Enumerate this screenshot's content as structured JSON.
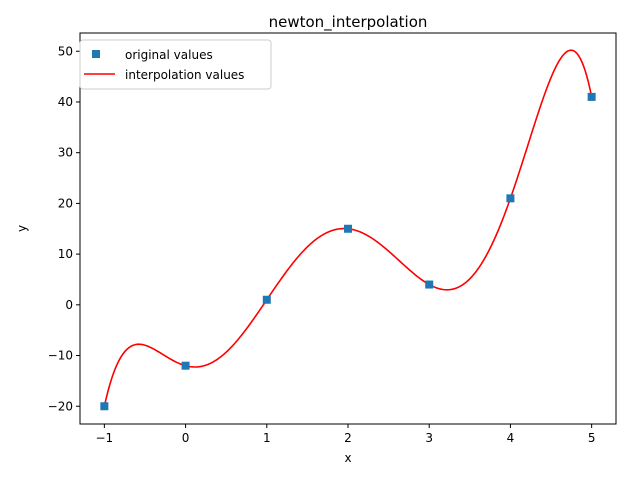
{
  "chart_data": {
    "type": "line",
    "title": "newton_interpolation",
    "xlabel": "x",
    "ylabel": "y",
    "xlim": [
      -1.3,
      5.3
    ],
    "ylim": [
      -23.5,
      53.6
    ],
    "xticks": [
      -1,
      0,
      1,
      2,
      3,
      4,
      5
    ],
    "yticks": [
      -20,
      -10,
      0,
      10,
      20,
      30,
      40,
      50
    ],
    "x_tick_labels": [
      "−1",
      "0",
      "1",
      "2",
      "3",
      "4",
      "5"
    ],
    "y_tick_labels": [
      "−20",
      "−10",
      "0",
      "10",
      "20",
      "30",
      "40",
      "50"
    ],
    "grid": false,
    "legend_position": "upper-left",
    "series": [
      {
        "name": "original values",
        "style": "markers",
        "marker": "square",
        "color": "#1f77b4",
        "x": [
          -1,
          0,
          1,
          2,
          3,
          4,
          5
        ],
        "y": [
          -20,
          -12,
          1,
          15,
          4,
          21,
          41
        ]
      },
      {
        "name": "interpolation values",
        "style": "line",
        "color": "#ff0000",
        "curve_from_points": "original values",
        "x_range": [
          -1,
          5
        ]
      }
    ]
  }
}
